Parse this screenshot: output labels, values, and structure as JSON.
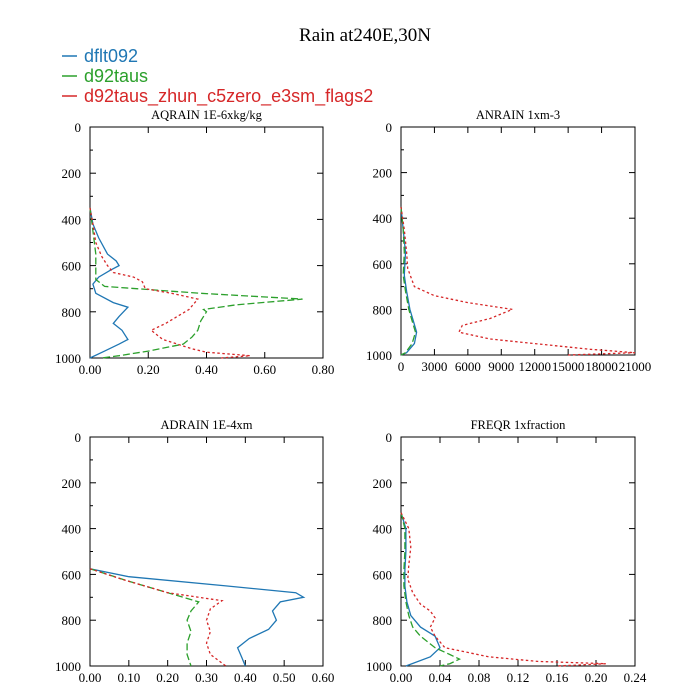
{
  "figure": {
    "title": "Rain at240E,30N",
    "legend": [
      {
        "name": "dflt092",
        "color": "#1f77b4",
        "dash": "solid"
      },
      {
        "name": "d92taus",
        "color": "#2ca02c",
        "dash": "dashed"
      },
      {
        "name": "d92taus_zhun_c5zero_e3sm_flags2",
        "color": "#d62728",
        "dash": "dotted"
      }
    ]
  },
  "chart_data": [
    {
      "type": "line",
      "title": "AQRAIN  1E-6xkg/kg",
      "xlabel": "",
      "ylabel": "",
      "xlim": [
        0,
        0.8
      ],
      "ylim": [
        1000,
        0
      ],
      "xticks": [
        0,
        0.2,
        0.4,
        0.6,
        0.8
      ],
      "xtick_labels": [
        "0.00",
        "0.20",
        "0.40",
        "0.60",
        "0.80"
      ],
      "yticks": [
        0,
        200,
        400,
        600,
        800,
        1000
      ],
      "ytick_labels": [
        "0",
        "200",
        "400",
        "600",
        "800",
        "1000"
      ],
      "series": [
        {
          "name": "dflt092",
          "points": [
            [
              0,
              350
            ],
            [
              0.01,
              420
            ],
            [
              0.03,
              480
            ],
            [
              0.06,
              550
            ],
            [
              0.09,
              580
            ],
            [
              0.1,
              600
            ],
            [
              0.07,
              620
            ],
            [
              0.03,
              650
            ],
            [
              0.01,
              680
            ],
            [
              0.02,
              720
            ],
            [
              0.08,
              760
            ],
            [
              0.13,
              780
            ],
            [
              0.1,
              820
            ],
            [
              0.08,
              850
            ],
            [
              0.11,
              880
            ],
            [
              0.13,
              920
            ],
            [
              0.1,
              940
            ],
            [
              0.05,
              970
            ],
            [
              0,
              1000
            ]
          ]
        },
        {
          "name": "d92taus",
          "points": [
            [
              0,
              350
            ],
            [
              0.01,
              450
            ],
            [
              0.02,
              550
            ],
            [
              0.02,
              600
            ],
            [
              0.02,
              660
            ],
            [
              0.05,
              690
            ],
            [
              0.38,
              720
            ],
            [
              0.73,
              745
            ],
            [
              0.5,
              770
            ],
            [
              0.39,
              790
            ],
            [
              0.4,
              800
            ],
            [
              0.38,
              840
            ],
            [
              0.37,
              880
            ],
            [
              0.35,
              910
            ],
            [
              0.32,
              940
            ],
            [
              0.2,
              970
            ],
            [
              0.1,
              990
            ],
            [
              0.04,
              1000
            ]
          ]
        },
        {
          "name": "d92taus_zhun_c5zero_e3sm_flags2",
          "points": [
            [
              0,
              350
            ],
            [
              0.01,
              420
            ],
            [
              0.02,
              500
            ],
            [
              0.04,
              560
            ],
            [
              0.06,
              600
            ],
            [
              0.08,
              630
            ],
            [
              0.15,
              650
            ],
            [
              0.18,
              670
            ],
            [
              0.19,
              700
            ],
            [
              0.28,
              720
            ],
            [
              0.37,
              745
            ],
            [
              0.34,
              790
            ],
            [
              0.3,
              820
            ],
            [
              0.26,
              850
            ],
            [
              0.21,
              880
            ],
            [
              0.25,
              920
            ],
            [
              0.3,
              940
            ],
            [
              0.35,
              960
            ],
            [
              0.4,
              975
            ],
            [
              0.55,
              990
            ],
            [
              0.45,
              1000
            ]
          ]
        }
      ]
    },
    {
      "type": "line",
      "title": "ANRAIN  1xm-3",
      "xlabel": "",
      "ylabel": "",
      "xlim": [
        0,
        21000
      ],
      "ylim": [
        1000,
        0
      ],
      "xticks": [
        0,
        3000,
        6000,
        9000,
        12000,
        15000,
        18000,
        21000
      ],
      "xtick_labels": [
        "0",
        "3000",
        "6000",
        "9000",
        "12000",
        "15000",
        "18000",
        "21000"
      ],
      "yticks": [
        0,
        200,
        400,
        600,
        800,
        1000
      ],
      "ytick_labels": [
        "0",
        "200",
        "400",
        "600",
        "800",
        "1000"
      ],
      "series": [
        {
          "name": "dflt092",
          "points": [
            [
              0,
              350
            ],
            [
              200,
              450
            ],
            [
              400,
              550
            ],
            [
              300,
              650
            ],
            [
              500,
              720
            ],
            [
              800,
              800
            ],
            [
              1100,
              850
            ],
            [
              1400,
              900
            ],
            [
              1200,
              950
            ],
            [
              500,
              990
            ],
            [
              0,
              1000
            ]
          ]
        },
        {
          "name": "d92taus",
          "points": [
            [
              0,
              350
            ],
            [
              200,
              450
            ],
            [
              300,
              550
            ],
            [
              200,
              650
            ],
            [
              400,
              720
            ],
            [
              700,
              800
            ],
            [
              1000,
              850
            ],
            [
              1300,
              900
            ],
            [
              1000,
              950
            ],
            [
              400,
              990
            ],
            [
              0,
              1000
            ]
          ]
        },
        {
          "name": "d92taus_zhun_c5zero_e3sm_flags2",
          "points": [
            [
              0,
              350
            ],
            [
              300,
              450
            ],
            [
              500,
              550
            ],
            [
              600,
              620
            ],
            [
              1200,
              700
            ],
            [
              3000,
              740
            ],
            [
              6000,
              770
            ],
            [
              10000,
              800
            ],
            [
              8000,
              840
            ],
            [
              5500,
              870
            ],
            [
              5200,
              900
            ],
            [
              8000,
              930
            ],
            [
              12000,
              950
            ],
            [
              17000,
              975
            ],
            [
              21000,
              990
            ],
            [
              15000,
              1000
            ]
          ]
        }
      ]
    },
    {
      "type": "line",
      "title": "ADRAIN  1E-4xm",
      "xlabel": "",
      "ylabel": "",
      "xlim": [
        0,
        0.6
      ],
      "ylim": [
        1000,
        0
      ],
      "xticks": [
        0,
        0.1,
        0.2,
        0.3,
        0.4,
        0.5,
        0.6
      ],
      "xtick_labels": [
        "0.00",
        "0.10",
        "0.20",
        "0.30",
        "0.40",
        "0.50",
        "0.60"
      ],
      "yticks": [
        0,
        200,
        400,
        600,
        800,
        1000
      ],
      "ytick_labels": [
        "0",
        "200",
        "400",
        "600",
        "800",
        "1000"
      ],
      "series": [
        {
          "name": "dflt092",
          "points": [
            [
              0,
              575
            ],
            [
              0.1,
              610
            ],
            [
              0.35,
              650
            ],
            [
              0.53,
              680
            ],
            [
              0.55,
              700
            ],
            [
              0.49,
              720
            ],
            [
              0.47,
              760
            ],
            [
              0.48,
              800
            ],
            [
              0.46,
              840
            ],
            [
              0.41,
              880
            ],
            [
              0.38,
              920
            ],
            [
              0.39,
              960
            ],
            [
              0.4,
              1000
            ]
          ]
        },
        {
          "name": "d92taus",
          "points": [
            [
              0,
              575
            ],
            [
              0.1,
              630
            ],
            [
              0.2,
              680
            ],
            [
              0.28,
              720
            ],
            [
              0.26,
              760
            ],
            [
              0.25,
              800
            ],
            [
              0.26,
              850
            ],
            [
              0.25,
              900
            ],
            [
              0.25,
              950
            ],
            [
              0.26,
              1000
            ]
          ]
        },
        {
          "name": "d92taus_zhun_c5zero_e3sm_flags2",
          "points": [
            [
              0,
              575
            ],
            [
              0.08,
              620
            ],
            [
              0.2,
              680
            ],
            [
              0.34,
              715
            ],
            [
              0.31,
              750
            ],
            [
              0.3,
              800
            ],
            [
              0.31,
              850
            ],
            [
              0.3,
              900
            ],
            [
              0.31,
              950
            ],
            [
              0.35,
              1000
            ]
          ]
        }
      ]
    },
    {
      "type": "line",
      "title": "FREQR  1xfraction",
      "xlabel": "",
      "ylabel": "",
      "xlim": [
        0,
        0.24
      ],
      "ylim": [
        1000,
        0
      ],
      "xticks": [
        0,
        0.04,
        0.08,
        0.12,
        0.16,
        0.2,
        0.24
      ],
      "xtick_labels": [
        "0.00",
        "0.04",
        "0.08",
        "0.12",
        "0.16",
        "0.20",
        "0.24"
      ],
      "yticks": [
        0,
        200,
        400,
        600,
        800,
        1000
      ],
      "ytick_labels": [
        "0",
        "200",
        "400",
        "600",
        "800",
        "1000"
      ],
      "series": [
        {
          "name": "dflt092",
          "points": [
            [
              0,
              330
            ],
            [
              0.005,
              400
            ],
            [
              0.005,
              500
            ],
            [
              0.004,
              580
            ],
            [
              0.004,
              650
            ],
            [
              0.006,
              720
            ],
            [
              0.01,
              780
            ],
            [
              0.02,
              830
            ],
            [
              0.035,
              870
            ],
            [
              0.04,
              920
            ],
            [
              0.03,
              960
            ],
            [
              0.005,
              1000
            ]
          ]
        },
        {
          "name": "d92taus",
          "points": [
            [
              0,
              330
            ],
            [
              0.004,
              400
            ],
            [
              0.004,
              500
            ],
            [
              0.003,
              580
            ],
            [
              0.003,
              650
            ],
            [
              0.005,
              720
            ],
            [
              0.008,
              780
            ],
            [
              0.012,
              830
            ],
            [
              0.02,
              870
            ],
            [
              0.035,
              920
            ],
            [
              0.05,
              950
            ],
            [
              0.06,
              970
            ],
            [
              0.05,
              990
            ],
            [
              0.04,
              1000
            ]
          ]
        },
        {
          "name": "d92taus_zhun_c5zero_e3sm_flags2",
          "points": [
            [
              0,
              330
            ],
            [
              0.008,
              400
            ],
            [
              0.01,
              480
            ],
            [
              0.008,
              560
            ],
            [
              0.007,
              620
            ],
            [
              0.012,
              680
            ],
            [
              0.02,
              730
            ],
            [
              0.03,
              760
            ],
            [
              0.035,
              790
            ],
            [
              0.03,
              830
            ],
            [
              0.035,
              870
            ],
            [
              0.045,
              920
            ],
            [
              0.09,
              960
            ],
            [
              0.14,
              980
            ],
            [
              0.21,
              990
            ],
            [
              0.16,
              1000
            ]
          ]
        }
      ]
    }
  ]
}
